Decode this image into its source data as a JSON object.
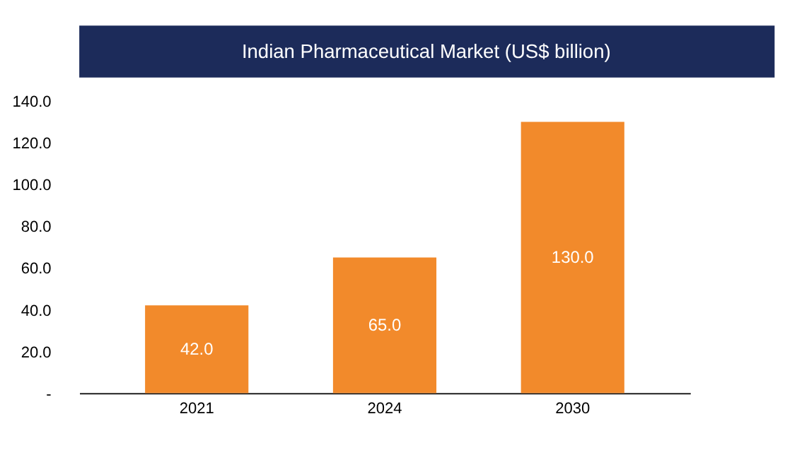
{
  "chart_data": {
    "type": "bar",
    "title": "Indian Pharmaceutical Market (US$ billion)",
    "categories": [
      "2021",
      "2024",
      "2030"
    ],
    "values": [
      42,
      65,
      130
    ],
    "value_labels": [
      "42.0",
      "65.0",
      "130.0"
    ],
    "color": "#f28a2b",
    "ylim": [
      0,
      140
    ],
    "yticks": [
      {
        "value": 0,
        "label": "-"
      },
      {
        "value": 20,
        "label": "20.0"
      },
      {
        "value": 40,
        "label": "40.0"
      },
      {
        "value": 60,
        "label": "60.0"
      },
      {
        "value": 80,
        "label": "80.0"
      },
      {
        "value": 100,
        "label": "100.0"
      },
      {
        "value": 120,
        "label": "120.0"
      },
      {
        "value": 140,
        "label": "140.0"
      }
    ],
    "grid": false,
    "legend": false
  }
}
